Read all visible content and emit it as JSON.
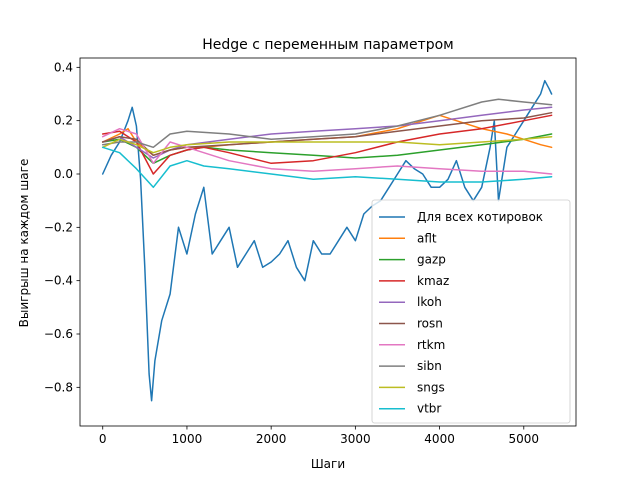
{
  "chart_data": {
    "type": "line",
    "title": "Hedge с переменным параметром",
    "xlabel": "Шаги",
    "ylabel": "Выигрыш на каждом шаге",
    "xlim": [
      -270,
      5620
    ],
    "ylim": [
      -0.945,
      0.435
    ],
    "xticks": [
      0,
      1000,
      2000,
      3000,
      4000,
      5000
    ],
    "yticks": [
      -0.8,
      -0.6,
      -0.4,
      -0.2,
      0.0,
      0.2,
      0.4
    ],
    "xtick_labels": [
      "0",
      "1000",
      "2000",
      "3000",
      "4000",
      "5000"
    ],
    "ytick_labels": [
      "−0.8",
      "−0.6",
      "−0.4",
      "−0.2",
      "0.0",
      "0.2",
      "0.4"
    ],
    "grid": false,
    "legend_position": "lower-right",
    "series": [
      {
        "name": "Для всех котировок",
        "color": "#1f77b4",
        "points": [
          [
            0,
            0.0
          ],
          [
            100,
            0.07
          ],
          [
            200,
            0.12
          ],
          [
            300,
            0.2
          ],
          [
            350,
            0.25
          ],
          [
            400,
            0.18
          ],
          [
            450,
            -0.02
          ],
          [
            500,
            -0.35
          ],
          [
            550,
            -0.75
          ],
          [
            580,
            -0.85
          ],
          [
            620,
            -0.7
          ],
          [
            700,
            -0.55
          ],
          [
            800,
            -0.45
          ],
          [
            900,
            -0.2
          ],
          [
            1000,
            -0.3
          ],
          [
            1100,
            -0.15
          ],
          [
            1200,
            -0.05
          ],
          [
            1300,
            -0.3
          ],
          [
            1400,
            -0.25
          ],
          [
            1500,
            -0.2
          ],
          [
            1600,
            -0.35
          ],
          [
            1700,
            -0.3
          ],
          [
            1800,
            -0.25
          ],
          [
            1900,
            -0.35
          ],
          [
            2000,
            -0.33
          ],
          [
            2100,
            -0.3
          ],
          [
            2200,
            -0.25
          ],
          [
            2300,
            -0.35
          ],
          [
            2400,
            -0.4
          ],
          [
            2500,
            -0.25
          ],
          [
            2600,
            -0.3
          ],
          [
            2700,
            -0.3
          ],
          [
            2800,
            -0.25
          ],
          [
            2900,
            -0.2
          ],
          [
            3000,
            -0.25
          ],
          [
            3100,
            -0.15
          ],
          [
            3200,
            -0.12
          ],
          [
            3300,
            -0.1
          ],
          [
            3400,
            -0.05
          ],
          [
            3500,
            0.0
          ],
          [
            3600,
            0.05
          ],
          [
            3700,
            0.02
          ],
          [
            3800,
            0.0
          ],
          [
            3900,
            -0.05
          ],
          [
            4000,
            -0.05
          ],
          [
            4100,
            -0.02
          ],
          [
            4200,
            0.05
          ],
          [
            4300,
            -0.05
          ],
          [
            4400,
            -0.1
          ],
          [
            4500,
            -0.05
          ],
          [
            4600,
            0.1
          ],
          [
            4650,
            0.2
          ],
          [
            4700,
            -0.1
          ],
          [
            4800,
            0.1
          ],
          [
            4900,
            0.15
          ],
          [
            5000,
            0.2
          ],
          [
            5100,
            0.25
          ],
          [
            5200,
            0.3
          ],
          [
            5250,
            0.35
          ],
          [
            5300,
            0.32
          ],
          [
            5330,
            0.3
          ]
        ]
      },
      {
        "name": "aflt",
        "color": "#ff7f0e",
        "points": [
          [
            0,
            0.12
          ],
          [
            200,
            0.15
          ],
          [
            300,
            0.17
          ],
          [
            400,
            0.12
          ],
          [
            600,
            0.07
          ],
          [
            800,
            0.09
          ],
          [
            1000,
            0.1
          ],
          [
            1200,
            0.1
          ],
          [
            1500,
            0.11
          ],
          [
            2000,
            0.12
          ],
          [
            2500,
            0.13
          ],
          [
            3000,
            0.14
          ],
          [
            3500,
            0.17
          ],
          [
            3800,
            0.2
          ],
          [
            4000,
            0.22
          ],
          [
            4200,
            0.2
          ],
          [
            4500,
            0.17
          ],
          [
            4800,
            0.15
          ],
          [
            5000,
            0.13
          ],
          [
            5200,
            0.11
          ],
          [
            5330,
            0.1
          ]
        ]
      },
      {
        "name": "gazp",
        "color": "#2ca02c",
        "points": [
          [
            0,
            0.12
          ],
          [
            200,
            0.13
          ],
          [
            400,
            0.1
          ],
          [
            600,
            0.04
          ],
          [
            800,
            0.07
          ],
          [
            1000,
            0.09
          ],
          [
            1200,
            0.1
          ],
          [
            1500,
            0.09
          ],
          [
            2000,
            0.08
          ],
          [
            2500,
            0.07
          ],
          [
            3000,
            0.06
          ],
          [
            3500,
            0.07
          ],
          [
            4000,
            0.09
          ],
          [
            4500,
            0.11
          ],
          [
            5000,
            0.13
          ],
          [
            5330,
            0.15
          ]
        ]
      },
      {
        "name": "kmaz",
        "color": "#d62728",
        "points": [
          [
            0,
            0.15
          ],
          [
            200,
            0.16
          ],
          [
            400,
            0.12
          ],
          [
            600,
            0.0
          ],
          [
            800,
            0.07
          ],
          [
            1000,
            0.09
          ],
          [
            1200,
            0.1
          ],
          [
            1500,
            0.08
          ],
          [
            2000,
            0.04
          ],
          [
            2500,
            0.05
          ],
          [
            3000,
            0.08
          ],
          [
            3500,
            0.12
          ],
          [
            4000,
            0.15
          ],
          [
            4500,
            0.17
          ],
          [
            5000,
            0.2
          ],
          [
            5330,
            0.22
          ]
        ]
      },
      {
        "name": "lkoh",
        "color": "#9467bd",
        "points": [
          [
            0,
            0.12
          ],
          [
            200,
            0.14
          ],
          [
            400,
            0.1
          ],
          [
            600,
            0.06
          ],
          [
            800,
            0.09
          ],
          [
            1000,
            0.11
          ],
          [
            1500,
            0.13
          ],
          [
            2000,
            0.15
          ],
          [
            2500,
            0.16
          ],
          [
            3000,
            0.17
          ],
          [
            3500,
            0.18
          ],
          [
            4000,
            0.2
          ],
          [
            4500,
            0.22
          ],
          [
            5000,
            0.24
          ],
          [
            5330,
            0.25
          ]
        ]
      },
      {
        "name": "rosn",
        "color": "#8c564b",
        "points": [
          [
            0,
            0.12
          ],
          [
            200,
            0.14
          ],
          [
            400,
            0.13
          ],
          [
            600,
            0.07
          ],
          [
            800,
            0.09
          ],
          [
            1000,
            0.1
          ],
          [
            1500,
            0.11
          ],
          [
            2000,
            0.12
          ],
          [
            2500,
            0.13
          ],
          [
            3000,
            0.14
          ],
          [
            3500,
            0.16
          ],
          [
            4000,
            0.18
          ],
          [
            4500,
            0.2
          ],
          [
            5000,
            0.21
          ],
          [
            5330,
            0.23
          ]
        ]
      },
      {
        "name": "rtkm",
        "color": "#e377c2",
        "points": [
          [
            0,
            0.14
          ],
          [
            200,
            0.17
          ],
          [
            400,
            0.15
          ],
          [
            600,
            0.04
          ],
          [
            800,
            0.12
          ],
          [
            1000,
            0.1
          ],
          [
            1200,
            0.08
          ],
          [
            1500,
            0.05
          ],
          [
            2000,
            0.02
          ],
          [
            2500,
            0.01
          ],
          [
            3000,
            0.02
          ],
          [
            3500,
            0.03
          ],
          [
            4000,
            0.02
          ],
          [
            4500,
            0.01
          ],
          [
            5000,
            0.01
          ],
          [
            5330,
            0.0
          ]
        ]
      },
      {
        "name": "sibn",
        "color": "#7f7f7f",
        "points": [
          [
            0,
            0.11
          ],
          [
            200,
            0.12
          ],
          [
            400,
            0.12
          ],
          [
            600,
            0.1
          ],
          [
            800,
            0.15
          ],
          [
            1000,
            0.16
          ],
          [
            1500,
            0.15
          ],
          [
            2000,
            0.13
          ],
          [
            2500,
            0.14
          ],
          [
            3000,
            0.15
          ],
          [
            3500,
            0.18
          ],
          [
            4000,
            0.22
          ],
          [
            4500,
            0.27
          ],
          [
            4700,
            0.28
          ],
          [
            5000,
            0.27
          ],
          [
            5330,
            0.26
          ]
        ]
      },
      {
        "name": "sngs",
        "color": "#bcbd22",
        "points": [
          [
            0,
            0.1
          ],
          [
            200,
            0.13
          ],
          [
            400,
            0.11
          ],
          [
            600,
            0.08
          ],
          [
            800,
            0.1
          ],
          [
            1000,
            0.11
          ],
          [
            1500,
            0.12
          ],
          [
            2000,
            0.12
          ],
          [
            2500,
            0.12
          ],
          [
            3000,
            0.12
          ],
          [
            3500,
            0.12
          ],
          [
            4000,
            0.11
          ],
          [
            4500,
            0.12
          ],
          [
            5000,
            0.13
          ],
          [
            5330,
            0.14
          ]
        ]
      },
      {
        "name": "vtbr",
        "color": "#17becf",
        "points": [
          [
            0,
            0.1
          ],
          [
            200,
            0.08
          ],
          [
            400,
            0.02
          ],
          [
            600,
            -0.05
          ],
          [
            800,
            0.03
          ],
          [
            1000,
            0.05
          ],
          [
            1200,
            0.03
          ],
          [
            1500,
            0.02
          ],
          [
            2000,
            0.0
          ],
          [
            2500,
            -0.02
          ],
          [
            3000,
            -0.01
          ],
          [
            3500,
            -0.02
          ],
          [
            4000,
            -0.03
          ],
          [
            4500,
            -0.03
          ],
          [
            5000,
            -0.02
          ],
          [
            5330,
            -0.01
          ]
        ]
      }
    ]
  }
}
